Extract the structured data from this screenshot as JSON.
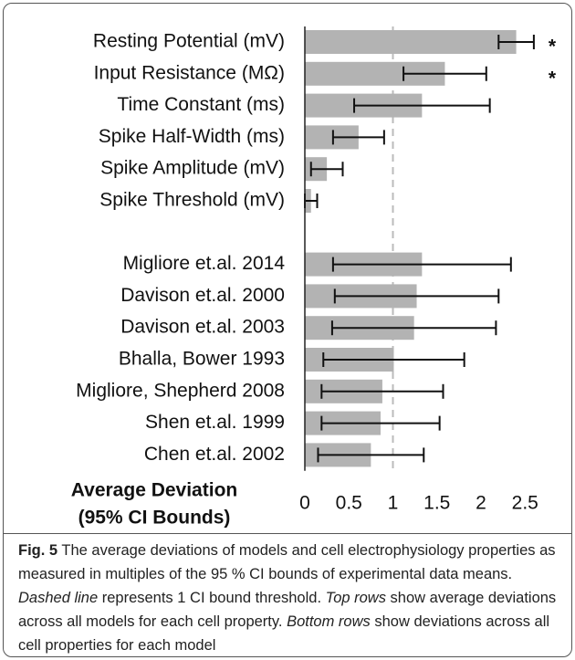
{
  "chart_data": {
    "type": "bar",
    "orientation": "horizontal",
    "categories": [
      "Resting Potential (mV)",
      "Input Resistance (MΩ)",
      "Time Constant (ms)",
      "Spike Half-Width (ms)",
      "Spike Amplitude (mV)",
      "Spike Threshold (mV)",
      null,
      "Migliore et.al. 2014",
      "Davison et.al. 2000",
      "Davison et.al. 2003",
      "Bhalla, Bower 1993",
      "Migliore, Shepherd 2008",
      "Shen et.al. 1999",
      "Chen et.al. 2002"
    ],
    "values": [
      2.4,
      1.59,
      1.33,
      0.61,
      0.25,
      0.07,
      null,
      1.33,
      1.27,
      1.24,
      1.01,
      0.88,
      0.86,
      0.75
    ],
    "errors": [
      0.2,
      0.47,
      0.77,
      0.29,
      0.18,
      0.07,
      null,
      1.01,
      0.93,
      0.93,
      0.8,
      0.69,
      0.67,
      0.6
    ],
    "color": "#b3b3b3",
    "xlim": [
      0,
      2.75
    ],
    "xticks": [
      0,
      0.5,
      1,
      1.5,
      2,
      2.5
    ],
    "threshold": 1,
    "annotations": [
      "*",
      "*"
    ],
    "x_label": [
      "Average Deviation",
      "(95% CI Bounds)"
    ]
  },
  "caption": {
    "label": "Fig. 5",
    "parts": [
      " The average deviations of models and cell electrophysiology properties as measured in multiples of the 95 % CI bounds of experimental data means. ",
      "Dashed line",
      " represents 1 CI bound threshold. ",
      "Top rows",
      " show average deviations across all models for each cell property. ",
      "Bottom rows",
      " show deviations across all cell properties for each model"
    ]
  }
}
